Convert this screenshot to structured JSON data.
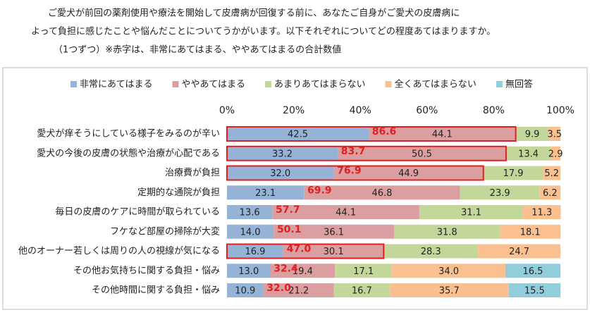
{
  "chart_data": {
    "type": "stacked-bar-horizontal",
    "title": [
      "ご愛犬が前回の薬剤使用や療法を開始して皮膚病が回復する前に、あなたご自身がご愛犬の皮膚病に",
      "よって負担に感じたことや悩んだことについてうかがいます。以下それぞれについてどの程度あてはまりますか。",
      "（1つずつ）※赤字は、非常にあてはまる、ややあてはまるの合計数値"
    ],
    "categories": [
      "愛犬が痒そうにしている様子をみるのが辛い",
      "愛犬の今後の皮膚の状態や治療が心配である",
      "治療費が負担",
      "定期的な通院が負担",
      "毎日の皮膚のケアに時間が取られている",
      "フケなど部屋の掃除が大変",
      "他のオーナー若しくは周りの人の視線が気になる",
      "その他お気持ちに関する負担・悩み",
      "その他時間に関する負担・悩み"
    ],
    "series": [
      {
        "name": "非常にあてはまる",
        "color": "#95b3d7",
        "values": [
          42.5,
          33.2,
          32.0,
          23.1,
          13.6,
          14.0,
          16.9,
          13.0,
          10.9
        ],
        "value_labels": [
          "42.5",
          "33.2",
          "32.0",
          "23.1",
          "13.6",
          "14.0",
          "16.9",
          "13.0",
          "10.9"
        ]
      },
      {
        "name": "ややあてはまる",
        "color": "#dc9fa1",
        "values": [
          44.1,
          50.5,
          44.9,
          46.8,
          44.1,
          36.1,
          30.1,
          19.4,
          21.2
        ],
        "value_labels": [
          "44.1",
          "50.5",
          "44.9",
          "46.8",
          "44.1",
          "36.1",
          "30.1",
          "19.4",
          "21.2"
        ]
      },
      {
        "name": "あまりあてはまらない",
        "color": "#c4d79b",
        "values": [
          9.9,
          13.4,
          17.9,
          23.9,
          31.1,
          31.8,
          28.3,
          17.1,
          16.7
        ],
        "value_labels": [
          "9.9",
          "13.4",
          "17.9",
          "23.9",
          "31.1",
          "31.8",
          "28.3",
          "17.1",
          "16.7"
        ]
      },
      {
        "name": "全くあてはまらない",
        "color": "#fac090",
        "values": [
          3.5,
          2.9,
          5.2,
          6.2,
          11.3,
          18.1,
          24.7,
          34.0,
          35.7
        ],
        "value_labels": [
          "3.5",
          "2.9",
          "5.2",
          "6.2",
          "11.3",
          "18.1",
          "24.7",
          "34.0",
          "35.7"
        ]
      },
      {
        "name": "無回答",
        "color": "#92cddc",
        "values": [
          null,
          null,
          null,
          null,
          null,
          null,
          null,
          16.5,
          15.5
        ],
        "value_labels": [
          null,
          null,
          null,
          null,
          null,
          null,
          null,
          "16.5",
          "15.5"
        ]
      }
    ],
    "totals": {
      "color": "#e02020",
      "values": [
        86.6,
        83.7,
        76.9,
        69.9,
        57.7,
        50.1,
        47.0,
        32.4,
        32.0
      ],
      "value_labels": [
        "86.6",
        "83.7",
        "76.9",
        "69.9",
        "57.7",
        "50.1",
        "47.0",
        "32.4",
        "32.0"
      ]
    },
    "highlight": [
      true,
      true,
      true,
      false,
      false,
      false,
      true,
      false,
      false
    ],
    "xlim": [
      0,
      100
    ],
    "xticks": [
      {
        "value": 0,
        "label": "0%"
      },
      {
        "value": 20,
        "label": "20%"
      },
      {
        "value": 40,
        "label": "40%"
      },
      {
        "value": 60,
        "label": "60%"
      },
      {
        "value": 80,
        "label": "80%"
      },
      {
        "value": 100,
        "label": "100%"
      }
    ],
    "legend": "top"
  }
}
